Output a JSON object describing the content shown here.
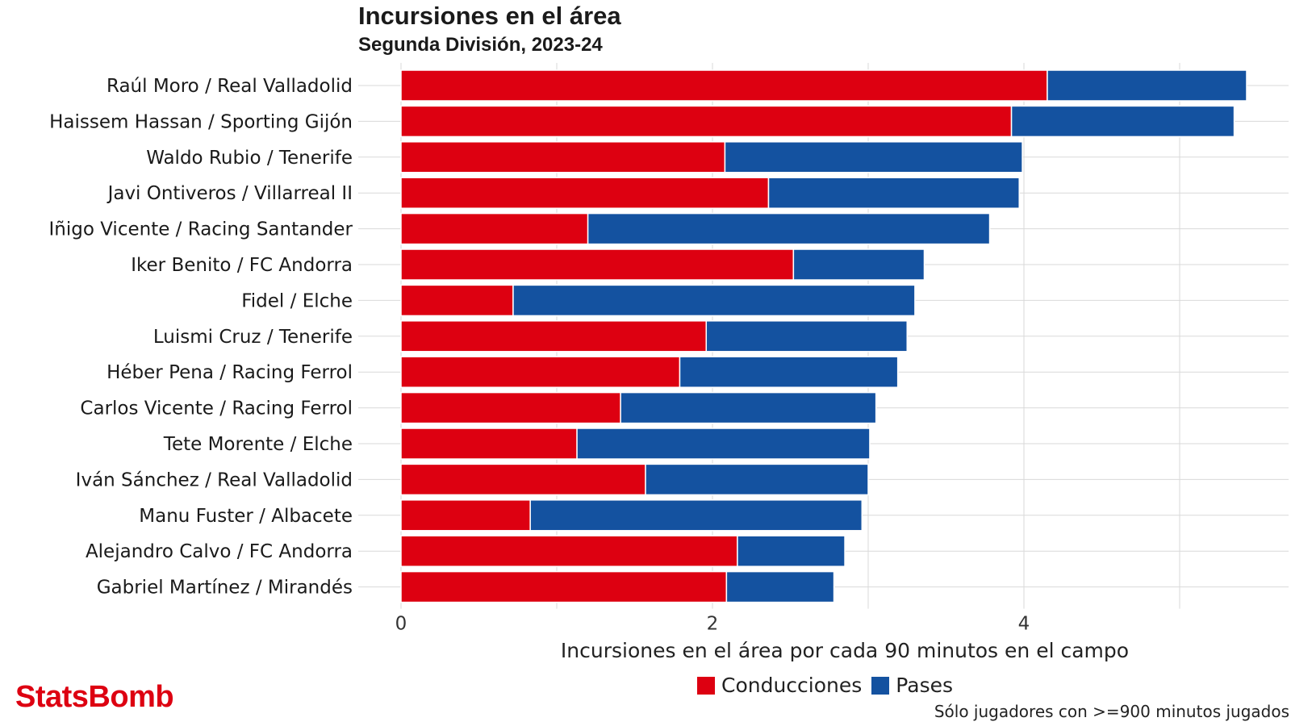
{
  "title": "Incursiones en el área",
  "subtitle": "Segunda División, 2023-24",
  "footnote": "Sólo jugadores con >=900 minutos jugados",
  "logo": {
    "text": "StatsBomb",
    "color": "#dd0011"
  },
  "colors": {
    "conducciones": "#dd0011",
    "pases": "#1452a0",
    "grid": "#d9d9d9"
  },
  "chart_data": {
    "type": "bar",
    "orientation": "horizontal",
    "stacked": true,
    "categories": [
      "Raúl Moro / Real Valladolid",
      "Haissem Hassan / Sporting Gijón",
      "Waldo Rubio / Tenerife",
      "Javi Ontiveros / Villarreal II",
      "Iñigo Vicente / Racing Santander",
      "Iker Benito / FC Andorra",
      "Fidel / Elche",
      "Luismi Cruz / Tenerife",
      "Héber Pena / Racing Ferrol",
      "Carlos Vicente / Racing Ferrol",
      "Tete Morente / Elche",
      "Iván Sánchez / Real Valladolid",
      "Manu Fuster / Albacete",
      "Alejandro Calvo / FC Andorra",
      "Gabriel Martínez / Mirandés"
    ],
    "series": [
      {
        "name": "Conducciones",
        "values": [
          4.15,
          3.92,
          2.08,
          2.36,
          1.2,
          2.52,
          0.72,
          1.96,
          1.79,
          1.41,
          1.13,
          1.57,
          0.83,
          2.16,
          2.09
        ]
      },
      {
        "name": "Pases",
        "values": [
          1.28,
          1.43,
          1.91,
          1.61,
          2.58,
          0.84,
          2.58,
          1.29,
          1.4,
          1.64,
          1.88,
          1.43,
          2.13,
          0.69,
          0.69
        ]
      }
    ],
    "xlabel": "Incursiones en el área por cada 90 minutos en el campo",
    "ylabel": "",
    "xlim": [
      0,
      5.5
    ],
    "xticks": [
      0,
      2,
      4
    ],
    "grid": true,
    "legend_position": "bottom"
  }
}
